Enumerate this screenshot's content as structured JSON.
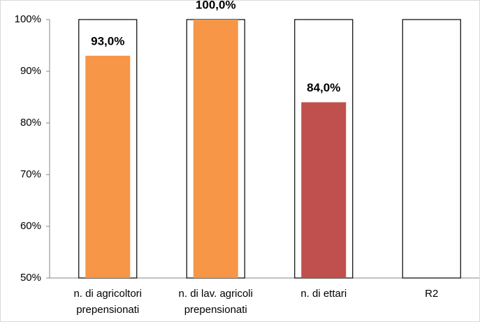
{
  "chart_data": {
    "type": "bar",
    "categories": [
      "n. di agricoltori prepensionati",
      "n. di lav. agricoli prepensionati",
      "n. di ettari",
      "R2"
    ],
    "series": [
      {
        "color": "#ffffff",
        "values": [
          100,
          100,
          100,
          100
        ]
      },
      {
        "colors": [
          "#f79646",
          "#f79646",
          "#c0504d",
          null
        ],
        "values": [
          93,
          100,
          84,
          null
        ],
        "value_labels": [
          "93,0%",
          "100,0%",
          "84,0%",
          null
        ]
      }
    ],
    "ylim": [
      50,
      100
    ],
    "yticks": [
      {
        "value": 50,
        "label": "50%"
      },
      {
        "value": 60,
        "label": "60%"
      },
      {
        "value": 70,
        "label": "70%"
      },
      {
        "value": 80,
        "label": "80%"
      },
      {
        "value": 90,
        "label": "90%"
      },
      {
        "value": 100,
        "label": "100%"
      }
    ]
  }
}
